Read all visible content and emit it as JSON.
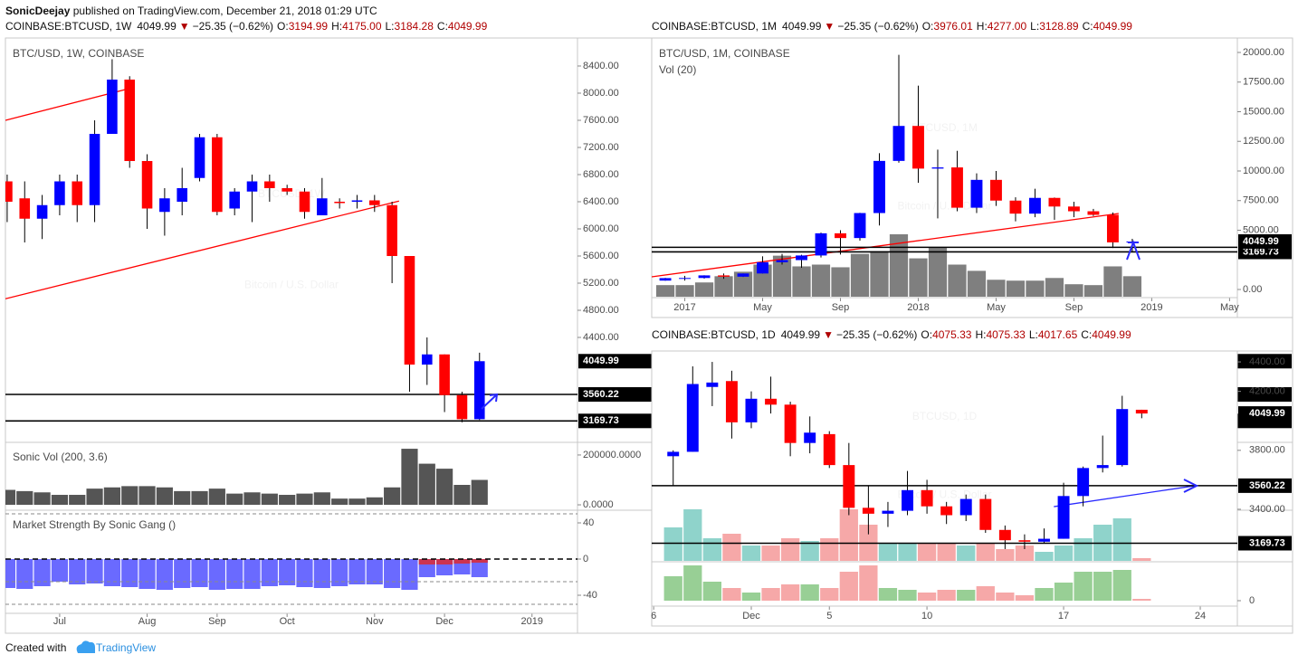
{
  "header": {
    "publisher": "SonicDeejay",
    "published": "published on TradingView.com, December 21, 2018 01:29 UTC",
    "footer": "Created with",
    "brand": "TradingView"
  },
  "chart_data": [
    {
      "type": "candlestick",
      "quote": {
        "symbol": "COINBASE:BTCUSD, 1W",
        "last": "4049.99",
        "arrow": "▼",
        "change": "−25.35 (−0.62%)",
        "fields": [
          {
            "key": "O:",
            "value": "3194.99"
          },
          {
            "key": "H:",
            "value": "4175.00"
          },
          {
            "key": "L:",
            "value": "3184.28"
          },
          {
            "key": "C:",
            "value": "4049.99"
          }
        ]
      },
      "title": "BTC/USD, 1W, COINBASE",
      "watermark": "BTCUSD, 1W",
      "watermark_sub": "Bitcoin / U.S. Dollar",
      "up_color": "#0000ff",
      "down_color": "#ff0000",
      "wick_color": "#000000",
      "x": [
        0,
        1,
        2,
        3,
        4,
        5,
        6,
        7,
        8,
        9,
        10,
        11,
        12,
        13,
        14,
        15,
        16,
        17,
        18,
        19,
        20,
        21,
        22,
        23,
        24,
        25,
        26,
        27
      ],
      "xlim": [
        -0.1,
        32.6
      ],
      "xticks": [
        {
          "value": 3,
          "label": "Jul"
        },
        {
          "value": 8,
          "label": "Aug"
        },
        {
          "value": 12,
          "label": "Sep"
        },
        {
          "value": 16,
          "label": "Oct"
        },
        {
          "value": 21,
          "label": "Nov"
        },
        {
          "value": 25,
          "label": "Dec"
        },
        {
          "value": 30,
          "label": "2019"
        }
      ],
      "open": [
        6700,
        6450,
        6150,
        6350,
        6700,
        6350,
        7400,
        8200,
        7000,
        6250,
        6400,
        6750,
        7350,
        6300,
        6550,
        6700,
        6600,
        6550,
        6200,
        6400,
        6400,
        6420,
        6350,
        5600,
        4000,
        4150,
        3550,
        3194.99
      ],
      "high": [
        6800,
        6700,
        6500,
        6800,
        6800,
        7600,
        8500,
        8250,
        7100,
        6600,
        6900,
        7400,
        7400,
        6600,
        6800,
        6800,
        6650,
        6600,
        6750,
        6450,
        6500,
        6500,
        6400,
        5600,
        4400,
        4150,
        3600,
        4175
      ],
      "low": [
        6100,
        5800,
        5850,
        6200,
        6100,
        6100,
        7400,
        6900,
        6000,
        5900,
        6200,
        6700,
        6200,
        6200,
        6100,
        6400,
        6500,
        6150,
        6200,
        6300,
        6300,
        6250,
        5200,
        3600,
        3700,
        3300,
        3150,
        3184.28
      ],
      "close": [
        6400,
        6150,
        6350,
        6700,
        6350,
        7400,
        8200,
        7000,
        6300,
        6450,
        6600,
        7350,
        6250,
        6550,
        6700,
        6600,
        6550,
        6250,
        6450,
        6380,
        6420,
        6350,
        5600,
        4000,
        4150,
        3550,
        3194.99,
        4049.99
      ],
      "ylim": [
        2867,
        8813
      ],
      "yticks": [
        {
          "value": 4400,
          "label": "4400.00"
        },
        {
          "value": 4800,
          "label": "4800.00"
        },
        {
          "value": 5200,
          "label": "5200.00"
        },
        {
          "value": 5600,
          "label": "5600.00"
        },
        {
          "value": 6000,
          "label": "6000.00"
        },
        {
          "value": 6400,
          "label": "6400.00"
        },
        {
          "value": 6800,
          "label": "6800.00"
        },
        {
          "value": 7200,
          "label": "7200.00"
        },
        {
          "value": 7600,
          "label": "7600.00"
        },
        {
          "value": 8000,
          "label": "8000.00"
        },
        {
          "value": 8400,
          "label": "8400.00"
        }
      ],
      "last_price": 4049.99,
      "levels": [
        3560.22,
        3169.73
      ],
      "level_color": "#000000",
      "trendlines": [
        {
          "x": [
            -0.1,
            7
          ],
          "y": [
            7600,
            8070
          ],
          "color": "#ff0000"
        },
        {
          "x": [
            -0.1,
            22.4
          ],
          "y": [
            4970,
            6410
          ],
          "color": "#ff0000"
        }
      ],
      "panels": [
        {
          "title": "Sonic Vol (200, 3.6)",
          "ylim": [
            -18000,
            247000
          ],
          "yticks": [
            {
              "value": 0,
              "label": "0.0000"
            },
            {
              "value": 200000,
              "label": "200000.0000"
            }
          ],
          "series": [
            {
              "color": "#555555",
              "values": [
                60000,
                55000,
                50000,
                40000,
                40000,
                65000,
                70000,
                75000,
                75000,
                70000,
                55000,
                55000,
                65000,
                45000,
                50000,
                45000,
                40000,
                45000,
                50000,
                25000,
                25000,
                30000,
                70000,
                225000,
                165000,
                145000,
                80000,
                100000
              ]
            }
          ]
        },
        {
          "title": "Market Strength By Sonic Gang ()",
          "ylim": [
            -54,
            53
          ],
          "yticks": [
            40,
            0,
            -40
          ],
          "levels": [
            50,
            0,
            -25,
            -50
          ],
          "series": [
            {
              "color": "#6a6aff",
              "values": [
                -32,
                -33,
                -30,
                -25,
                -28,
                -27,
                -30,
                -31,
                -33,
                -34,
                -32,
                -31,
                -34,
                -33,
                -33,
                -30,
                -29,
                -31,
                -32,
                -30,
                -28,
                -28,
                -32,
                -34,
                -20,
                -18,
                -17,
                -20
              ]
            },
            {
              "color": "#cc3350",
              "values": [
                null,
                null,
                null,
                null,
                null,
                null,
                null,
                null,
                null,
                null,
                null,
                null,
                null,
                null,
                null,
                null,
                null,
                null,
                null,
                null,
                null,
                null,
                null,
                null,
                -6,
                -6,
                -5,
                -4
              ]
            }
          ]
        }
      ]
    },
    {
      "type": "candlestick",
      "quote": {
        "symbol": "COINBASE:BTCUSD, 1M",
        "last": "4049.99",
        "arrow": "▼",
        "change": "−25.35 (−0.62%)",
        "fields": [
          {
            "key": "O:",
            "value": "3976.01"
          },
          {
            "key": "H:",
            "value": "4277.00"
          },
          {
            "key": "L:",
            "value": "3128.89"
          },
          {
            "key": "C:",
            "value": "4049.99"
          }
        ]
      },
      "title": "BTC/USD, 1M, COINBASE",
      "watermark": "BTCUSD, 1M",
      "watermark_sub": "Bitcoin / U.S. Dollar",
      "up_color": "#0000ff",
      "down_color": "#ff0000",
      "wick_color": "#000000",
      "x": [
        -1,
        0,
        1,
        2,
        3,
        4,
        5,
        6,
        7,
        8,
        9,
        10,
        11,
        12,
        13,
        14,
        15,
        16,
        17,
        18,
        19,
        20,
        21,
        22,
        23
      ],
      "xlim": [
        -1.7,
        28.4
      ],
      "xticks": [
        {
          "value": 0,
          "label": "2017"
        },
        {
          "value": 4,
          "label": "May"
        },
        {
          "value": 8,
          "label": "Sep"
        },
        {
          "value": 12,
          "label": "2018"
        },
        {
          "value": 16,
          "label": "May"
        },
        {
          "value": 20,
          "label": "Sep"
        },
        {
          "value": 24,
          "label": "2019"
        },
        {
          "value": 28,
          "label": "May"
        }
      ],
      "open": [
        750,
        960,
        970,
        1190,
        1080,
        1350,
        2300,
        2480,
        2870,
        4740,
        4340,
        6450,
        10850,
        13800,
        10200,
        10300,
        6900,
        9250,
        7500,
        6400,
        7730,
        7000,
        6600,
        6300,
        3976.01
      ],
      "high": [
        980,
        1150,
        1200,
        1350,
        1350,
        2800,
        3000,
        2930,
        4800,
        5000,
        6470,
        11500,
        19800,
        17200,
        11800,
        11700,
        9800,
        10000,
        7780,
        8500,
        7760,
        7400,
        6800,
        6500,
        4277
      ],
      "low": [
        740,
        750,
        920,
        900,
        1060,
        1350,
        2100,
        1830,
        2700,
        2950,
        4120,
        5400,
        10700,
        9000,
        6000,
        6600,
        6450,
        7050,
        5750,
        6100,
        5880,
        6100,
        6200,
        3500,
        3128.89
      ],
      "close": [
        960,
        970,
        1190,
        1080,
        1350,
        2300,
        2480,
        2870,
        4740,
        4340,
        6450,
        10850,
        13800,
        10200,
        10300,
        6900,
        9250,
        7500,
        6400,
        7730,
        7000,
        6600,
        6300,
        3976.01,
        4049.99
      ],
      "ylim": [
        -610,
        21220
      ],
      "yticks": [
        {
          "value": 0,
          "label": "0.00"
        },
        {
          "value": 5000,
          "label": "5000.00"
        },
        {
          "value": 7500,
          "label": "7500.00"
        },
        {
          "value": 10000,
          "label": "10000.00"
        },
        {
          "value": 12500,
          "label": "12500.00"
        },
        {
          "value": 15000,
          "label": "15000.00"
        },
        {
          "value": 17500,
          "label": "17500.00"
        },
        {
          "value": 20000,
          "label": "20000.00"
        }
      ],
      "last_price": 4049.99,
      "levels": [
        3560.22,
        3169.73
      ],
      "level_color": "#000000",
      "trendlines": [
        {
          "x": [
            -1.7,
            22.3
          ],
          "y": [
            1070,
            6410
          ],
          "color": "#ff0000"
        }
      ],
      "overlays": [
        {
          "title": "Vol (20)",
          "ylim": [
            0,
            290
          ],
          "series": [
            {
              "color": "#7f7f7f",
              "values": [
                13,
                13,
                16,
                23,
                28,
                36,
                46,
                34,
                36,
                33,
                48,
                51,
                70,
                43,
                55,
                36,
                29,
                19,
                18,
                18,
                21,
                14,
                13,
                34,
                23
              ]
            }
          ]
        }
      ]
    },
    {
      "type": "candlestick",
      "quote": {
        "symbol": "COINBASE:BTCUSD, 1D",
        "last": "4049.99",
        "arrow": "▼",
        "change": "−25.35 (−0.62%)",
        "fields": [
          {
            "key": "O:",
            "value": "4075.33"
          },
          {
            "key": "H:",
            "value": "4075.33"
          },
          {
            "key": "L:",
            "value": "4017.65"
          },
          {
            "key": "C:",
            "value": "4049.99"
          }
        ]
      },
      "watermark": "BTCUSD, 1D",
      "watermark_sub": "Bitcoin / U.S. Dollar",
      "up_color": "#0000ff",
      "down_color": "#ff0000",
      "wick_color": "#000000",
      "x": [
        1,
        2,
        3,
        4,
        5,
        6,
        7,
        8,
        9,
        10,
        11,
        12,
        13,
        14,
        15,
        16,
        17,
        18,
        19,
        20,
        21,
        22,
        23,
        24,
        25
      ],
      "xlim": [
        -0.1,
        29.9
      ],
      "xticks": [
        {
          "value": 0,
          "label": "6"
        },
        {
          "value": 5,
          "label": "Dec"
        },
        {
          "value": 9,
          "label": "5"
        },
        {
          "value": 14,
          "label": "10"
        },
        {
          "value": 21,
          "label": "17"
        },
        {
          "value": 28,
          "label": "24"
        }
      ],
      "open": [
        3760,
        3790,
        4230,
        4270,
        3990,
        4150,
        4110,
        3850,
        3910,
        3700,
        3410,
        3370,
        3390,
        3530,
        3420,
        3360,
        3470,
        3260,
        3190,
        3180,
        3200,
        3490,
        3680,
        3700,
        4075.33
      ],
      "high": [
        3800,
        4370,
        4400,
        4340,
        4200,
        4300,
        4130,
        4030,
        3930,
        3850,
        3560,
        3450,
        3660,
        3600,
        3450,
        3500,
        3500,
        3290,
        3230,
        3270,
        3580,
        3690,
        3900,
        4170,
        4075.33
      ],
      "low": [
        3560,
        3790,
        4100,
        3880,
        3950,
        4050,
        3760,
        3780,
        3680,
        3360,
        3230,
        3280,
        3360,
        3370,
        3300,
        3320,
        3240,
        3130,
        3130,
        3170,
        3200,
        3420,
        3650,
        3690,
        4017.65
      ],
      "close": [
        3790,
        4250,
        4260,
        3990,
        4150,
        4110,
        3850,
        3920,
        3700,
        3410,
        3370,
        3390,
        3530,
        3420,
        3360,
        3470,
        3260,
        3190,
        3180,
        3200,
        3490,
        3680,
        3700,
        4080,
        4049.99
      ],
      "ylim": [
        3050,
        4474
      ],
      "yticks": [
        {
          "value": 3400,
          "label": "3400.00"
        },
        {
          "value": 3800,
          "label": "3800.00"
        },
        {
          "value": 4200,
          "label": "4200.00"
        },
        {
          "value": 4400,
          "label": "4400.00"
        }
      ],
      "last_price": 4049.99,
      "levels": [
        3560.22,
        3169.73
      ],
      "level_color": "#000000",
      "trendlines": [
        {
          "x": [
            20.5,
            27.7
          ],
          "y": [
            3418,
            3559
          ],
          "color": "#2929ff"
        }
      ],
      "overlays": [
        {
          "ylim": [
            0,
            232
          ],
          "series": [
            {
              "up_color": "#8fd3cb",
              "down_color": "#f6a8a8",
              "values": [
                37,
                57,
                25,
                30,
                17,
                17,
                25,
                22,
                25,
                57,
                40,
                20,
                20,
                20,
                20,
                17,
                20,
                13,
                17,
                10,
                17,
                25,
                40,
                47,
                3
              ]
            }
          ]
        }
      ],
      "panels": [
        {
          "ylim": [
            -4,
            42
          ],
          "yticks": [
            0
          ],
          "series": [
            {
              "up_color": "#98cf95",
              "down_color": "#f6a8a8",
              "values": [
                27,
                39,
                21,
                14,
                9,
                14,
                18,
                18,
                14,
                32,
                39,
                14,
                12,
                9,
                12,
                12,
                16,
                9,
                6,
                14,
                20,
                32,
                32,
                34,
                2
              ]
            }
          ]
        }
      ]
    }
  ]
}
